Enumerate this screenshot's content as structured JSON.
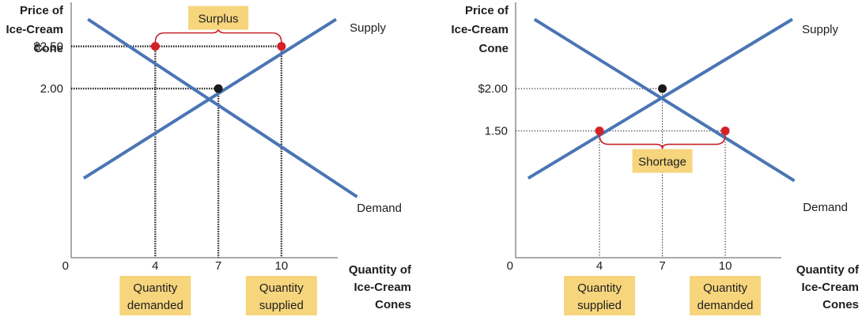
{
  "colors": {
    "curve": "#4a75b5",
    "point_red": "#d62027",
    "point_black": "#1a1a1a",
    "bracket": "#c8232b",
    "label_box": "#f6d57d"
  },
  "chart_data": [
    {
      "type": "line",
      "ylabel": [
        "Price of",
        "Ice-Cream",
        "Cone"
      ],
      "xlabel": [
        "Quantity of",
        "Ice-Cream",
        "Cones"
      ],
      "xlim": [
        0,
        12.6
      ],
      "ylim": [
        0,
        3.02
      ],
      "origin_label": "0",
      "x_ticks": [
        {
          "value": 4,
          "label": "4"
        },
        {
          "value": 7,
          "label": "7"
        },
        {
          "value": 10,
          "label": "10"
        }
      ],
      "y_ticks": [
        {
          "value": 2.5,
          "label": "$2.50"
        },
        {
          "value": 2.0,
          "label": "2.00"
        }
      ],
      "series": [
        {
          "name": "Supply",
          "x": [
            0.6,
            12.6
          ],
          "y": [
            0.94,
            2.82
          ]
        },
        {
          "name": "Demand",
          "x": [
            0.8,
            13.6
          ],
          "y": [
            2.82,
            0.72
          ]
        }
      ],
      "equilibrium": {
        "x": 7,
        "y": 2.0
      },
      "highlight_points": [
        {
          "x": 4,
          "y": 2.5
        },
        {
          "x": 10,
          "y": 2.5
        }
      ],
      "price_lines": [
        2.5,
        2.0
      ],
      "quantity_lines": [
        4,
        7,
        10
      ],
      "bracket": {
        "x_from": 4,
        "x_to": 10,
        "y": 2.5,
        "position": "above",
        "label": "Surplus"
      },
      "bottom_labels": [
        {
          "x": 4,
          "lines": [
            "Quantity",
            "demanded"
          ]
        },
        {
          "x": 10,
          "lines": [
            "Quantity",
            "supplied"
          ]
        }
      ]
    },
    {
      "type": "line",
      "ylabel": [
        "Price of",
        "Ice-Cream",
        "Cone"
      ],
      "xlabel": [
        "Quantity of",
        "Ice-Cream",
        "Cones"
      ],
      "xlim": [
        0,
        12.6
      ],
      "ylim": [
        0,
        3.02
      ],
      "origin_label": "0",
      "x_ticks": [
        {
          "value": 4,
          "label": "4"
        },
        {
          "value": 7,
          "label": "7"
        },
        {
          "value": 10,
          "label": "10"
        }
      ],
      "y_ticks": [
        {
          "value": 2.0,
          "label": "$2.00"
        },
        {
          "value": 1.5,
          "label": "1.50"
        }
      ],
      "series": [
        {
          "name": "Supply",
          "x": [
            0.6,
            13.2
          ],
          "y": [
            0.94,
            2.82
          ]
        },
        {
          "name": "Demand",
          "x": [
            0.9,
            13.3
          ],
          "y": [
            2.82,
            0.91
          ]
        }
      ],
      "equilibrium": {
        "x": 7,
        "y": 2.0
      },
      "highlight_points": [
        {
          "x": 4,
          "y": 1.5
        },
        {
          "x": 10,
          "y": 1.5
        }
      ],
      "price_lines": [
        2.0,
        1.5
      ],
      "quantity_lines": [
        4,
        7,
        10
      ],
      "bracket": {
        "x_from": 4,
        "x_to": 10,
        "y": 1.5,
        "position": "below",
        "label": "Shortage"
      },
      "bottom_labels": [
        {
          "x": 4,
          "lines": [
            "Quantity",
            "supplied"
          ]
        },
        {
          "x": 10,
          "lines": [
            "Quantity",
            "demanded"
          ]
        }
      ]
    }
  ]
}
